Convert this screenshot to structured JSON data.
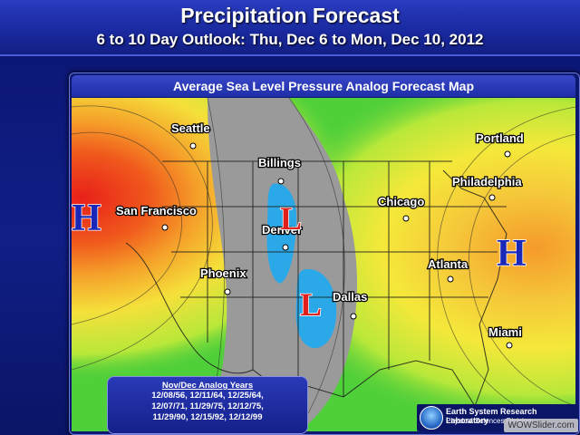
{
  "header": {
    "title": "Precipitation Forecast",
    "subtitle": "6 to 10 Day Outlook: Thu, Dec 6 to Mon, Dec 10, 2012"
  },
  "map": {
    "title": "Average Sea Level Pressure Analog Forecast Map",
    "colors": {
      "high_core": "#e8201a",
      "high_orange": "#f07a1e",
      "high_yellow": "#f5e03a",
      "mid_green": "#4fcf3a",
      "neutral_gray": "#9a9a9a",
      "low_blue": "#2aa8e8",
      "high_letter": "#1a28b8",
      "low_letter": "#e0201a"
    },
    "cities": [
      {
        "name": "Seattle"
      },
      {
        "name": "Billings"
      },
      {
        "name": "San Francisco"
      },
      {
        "name": "Denver"
      },
      {
        "name": "Phoenix"
      },
      {
        "name": "Dallas"
      },
      {
        "name": "Chicago"
      },
      {
        "name": "Portland"
      },
      {
        "name": "Philadelphia"
      },
      {
        "name": "Atlanta"
      },
      {
        "name": "Miami"
      }
    ],
    "pressure_centers": [
      {
        "type": "H",
        "label": "H",
        "region": "Pacific off California"
      },
      {
        "type": "H",
        "label": "H",
        "region": "Atlantic off Mid-Atlantic coast"
      },
      {
        "type": "L",
        "label": "L",
        "region": "Central Rockies"
      },
      {
        "type": "L",
        "label": "L",
        "region": "Southern Plains"
      }
    ]
  },
  "analog": {
    "title": "Nov/Dec Analog Years",
    "lines": [
      "12/08/56, 12/11/64, 12/25/64,",
      "12/07/71, 11/29/75, 12/12/75,",
      "11/29/90, 12/15/92, 12/12/99"
    ]
  },
  "credit": {
    "line1": "Earth System Research Laboratory",
    "line2": "Physical Sciences Division",
    "watermark": "WOWSlider.com"
  }
}
